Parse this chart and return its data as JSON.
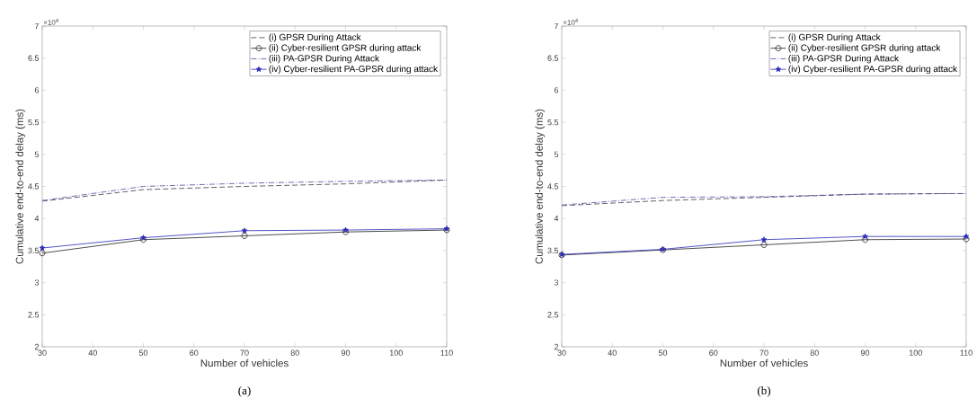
{
  "chart_data": [
    {
      "type": "line",
      "xlabel": "Number of vehicles",
      "ylabel": "Cumulative end-to-end delay (ms)",
      "x": [
        30,
        50,
        70,
        90,
        110
      ],
      "xlim": [
        30,
        110
      ],
      "xticks": [
        30,
        40,
        50,
        60,
        70,
        80,
        90,
        100,
        110
      ],
      "ylim": [
        2,
        7
      ],
      "yticks": [
        2,
        2.5,
        3,
        3.5,
        4,
        4.5,
        5,
        5.5,
        6,
        6.5,
        7
      ],
      "grid": false,
      "legend": "top right",
      "annotations": [
        "×10$^{4}$",
        "(a)"
      ],
      "series": [
        {
          "name": "(i) GPSR During Attack",
          "color": "#3a3a48",
          "line_style": "dashed",
          "marker": "none",
          "values": [
            4.27,
            4.45,
            4.5,
            4.54,
            4.6
          ]
        },
        {
          "name": "(ii) Cyber-resilient GPSR during attack",
          "color": "#222222",
          "line_style": "solid",
          "marker": "circle",
          "values": [
            3.46,
            3.67,
            3.73,
            3.79,
            3.82
          ]
        },
        {
          "name": "(iii) PA-GPSR During Attack",
          "color": "#4a4aa0",
          "line_style": "dashdot",
          "marker": "none",
          "values": [
            4.28,
            4.5,
            4.55,
            4.58,
            4.6
          ]
        },
        {
          "name": "(iv) Cyber-resilient PA-GPSR during attack",
          "color": "#2a2ab8",
          "line_style": "solid",
          "marker": "star",
          "values": [
            3.54,
            3.7,
            3.81,
            3.82,
            3.84
          ]
        }
      ]
    },
    {
      "type": "line",
      "xlabel": "Number of vehicles",
      "ylabel": "Cumulative end-to-end delay (ms)",
      "x": [
        30,
        50,
        70,
        90,
        110
      ],
      "xlim": [
        30,
        110
      ],
      "xticks": [
        30,
        40,
        50,
        60,
        70,
        80,
        90,
        100,
        110
      ],
      "ylim": [
        2,
        7
      ],
      "yticks": [
        2,
        2.5,
        3,
        3.5,
        4,
        4.5,
        5,
        5.5,
        6,
        6.5,
        7
      ],
      "grid": false,
      "legend": "top right",
      "annotations": [
        "×10$^{4}$",
        "(b)"
      ],
      "series": [
        {
          "name": "(i) GPSR During Attack",
          "color": "#3a3a48",
          "line_style": "dashed",
          "marker": "none",
          "values": [
            4.2,
            4.28,
            4.33,
            4.38,
            4.39
          ]
        },
        {
          "name": "(ii) Cyber-resilient GPSR during attack",
          "color": "#222222",
          "line_style": "solid",
          "marker": "circle",
          "values": [
            3.43,
            3.51,
            3.59,
            3.67,
            3.68
          ]
        },
        {
          "name": "(iii) PA-GPSR During Attack",
          "color": "#4a4aa0",
          "line_style": "dashdot",
          "marker": "none",
          "values": [
            4.21,
            4.33,
            4.34,
            4.38,
            4.39
          ]
        },
        {
          "name": "(iv) Cyber-resilient PA-GPSR during attack",
          "color": "#2a2ab8",
          "line_style": "solid",
          "marker": "star",
          "values": [
            3.44,
            3.52,
            3.67,
            3.72,
            3.72
          ]
        }
      ]
    }
  ]
}
